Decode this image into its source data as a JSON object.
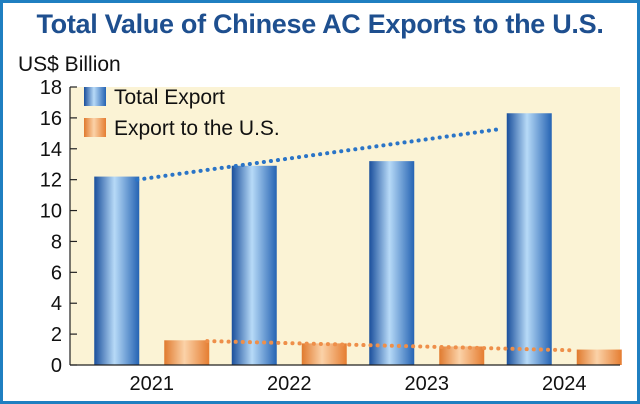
{
  "colors": {
    "frame": "#1f7fc1",
    "plot_background": "#fbf3d5",
    "title": "#1e4f8f",
    "total_export": "#2a74c7",
    "export_to_us": "#ee8f4a"
  },
  "chart_data": {
    "type": "bar",
    "title": "Total Value of Chinese AC Exports to the U.S.",
    "ylabel": "US$ Billion",
    "xlabel": "",
    "categories": [
      "2021",
      "2022",
      "2023",
      "2024"
    ],
    "ylim": [
      0,
      18
    ],
    "yticks": [
      "0",
      "2",
      "4",
      "6",
      "8",
      "10",
      "12",
      "14",
      "16",
      "18"
    ],
    "grid": false,
    "legend_position": "top-left",
    "series": [
      {
        "name": "Total Export",
        "values": [
          12.2,
          12.9,
          13.2,
          16.3
        ]
      },
      {
        "name": "Export to the U.S.",
        "values": [
          1.6,
          1.4,
          1.2,
          1.0
        ]
      }
    ],
    "trendlines": [
      {
        "series": "Total Export",
        "style": "dotted",
        "from": 12.0,
        "to": 15.3
      },
      {
        "series": "Export to the U.S.",
        "style": "dotted",
        "from": 1.55,
        "to": 0.95
      }
    ]
  }
}
